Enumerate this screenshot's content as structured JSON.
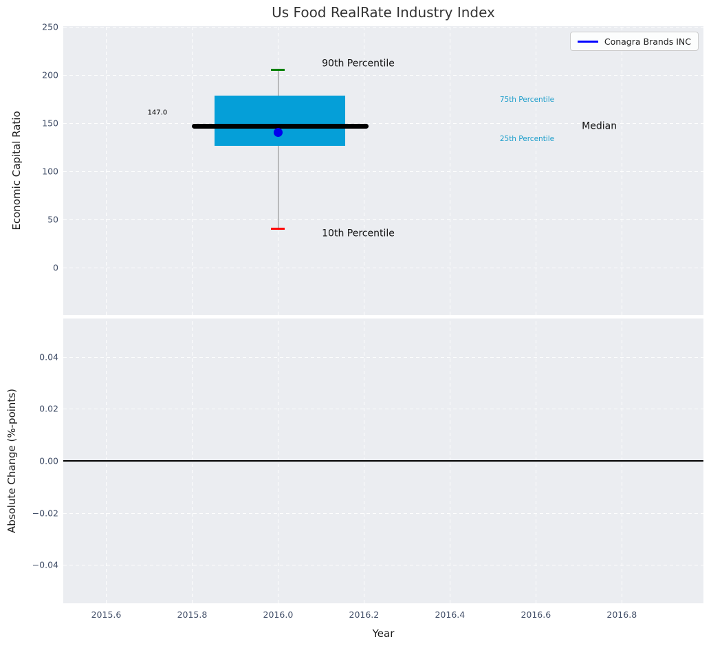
{
  "title": "Us Food RealRate Industry Index",
  "legend": {
    "label": "Conagra Brands INC",
    "line_color": "#0000ff",
    "position": "upper right"
  },
  "chart_data": {
    "type": "boxplot",
    "title": "Us Food RealRate Industry Index",
    "xlabel": "Year",
    "xlim": [
      2015.5,
      2016.99
    ],
    "grid": true,
    "x_ticks": [
      {
        "value": 2015.6,
        "label": "2015.6"
      },
      {
        "value": 2015.8,
        "label": "2015.8"
      },
      {
        "value": 2016.0,
        "label": "2016.0"
      },
      {
        "value": 2016.2,
        "label": "2016.2"
      },
      {
        "value": 2016.4,
        "label": "2016.4"
      },
      {
        "value": 2016.6,
        "label": "2016.6"
      },
      {
        "value": 2016.8,
        "label": "2016.8"
      }
    ],
    "top_plot": {
      "ylabel": "Economic Capital Ratio",
      "ylim": [
        -49,
        251
      ],
      "y_ticks": [
        {
          "value": 250,
          "label": "250"
        },
        {
          "value": 200,
          "label": "200"
        },
        {
          "value": 150,
          "label": "150"
        },
        {
          "value": 100,
          "label": "100"
        },
        {
          "value": 50,
          "label": "50"
        },
        {
          "value": 0,
          "label": "0"
        }
      ],
      "box": {
        "x": 2016.0,
        "p10": 41,
        "p25": 127,
        "median": 147.0,
        "p75": 179,
        "p90": 206,
        "box_x_span": [
          2015.852,
          2016.156
        ],
        "median_x_span": [
          2015.8,
          2016.21
        ],
        "colors": {
          "box_fill": "#059fd8",
          "median_line": "#000000",
          "whisker": "#808080",
          "cap_p90": "#008000",
          "cap_p10": "#ff0000"
        }
      },
      "company_point": {
        "name": "Conagra Brands INC",
        "x": 2016.0,
        "y": 141,
        "color": "#0000ee"
      },
      "annotations": [
        {
          "id": "p90-annotation",
          "text": "90th Percentile",
          "x": 2016.102,
          "y": 212,
          "color": "#111111",
          "size": 14,
          "align": "left"
        },
        {
          "id": "p10-annotation",
          "text": "10th Percentile",
          "x": 2016.102,
          "y": 35,
          "color": "#111111",
          "size": 14,
          "align": "left"
        },
        {
          "id": "median-value-annotation",
          "text": "147.0",
          "x": 2015.742,
          "y": 161,
          "color": "#000000",
          "size": 10,
          "align": "right"
        },
        {
          "id": "p75-annotation",
          "text": "75th Percentile",
          "x": 2016.516,
          "y": 174,
          "color": "#1d9ecb",
          "size": 10.5,
          "align": "left"
        },
        {
          "id": "p25-annotation",
          "text": "25th Percentile",
          "x": 2016.516,
          "y": 133,
          "color": "#1d9ecb",
          "size": 10.5,
          "align": "left"
        },
        {
          "id": "median-annotation",
          "text": "Median",
          "x": 2016.707,
          "y": 147,
          "color": "#111111",
          "size": 14,
          "align": "left"
        }
      ]
    },
    "bottom_plot": {
      "ylabel": "Absolute Change (%-points)",
      "ylim": [
        -0.0547,
        0.0547
      ],
      "y_ticks": [
        {
          "value": 0.04,
          "label": "0.04"
        },
        {
          "value": 0.02,
          "label": "0.02"
        },
        {
          "value": 0.0,
          "label": "0.00"
        },
        {
          "value": -0.02,
          "label": "−0.02"
        },
        {
          "value": -0.04,
          "label": "−0.04"
        }
      ],
      "zero_line": {
        "y": 0.0,
        "color": "#000000"
      }
    }
  },
  "colors": {
    "panel_background": "#ebedf1",
    "gridline": "#ffffff",
    "tick_label": "#3f4c66",
    "title": "#333333"
  }
}
